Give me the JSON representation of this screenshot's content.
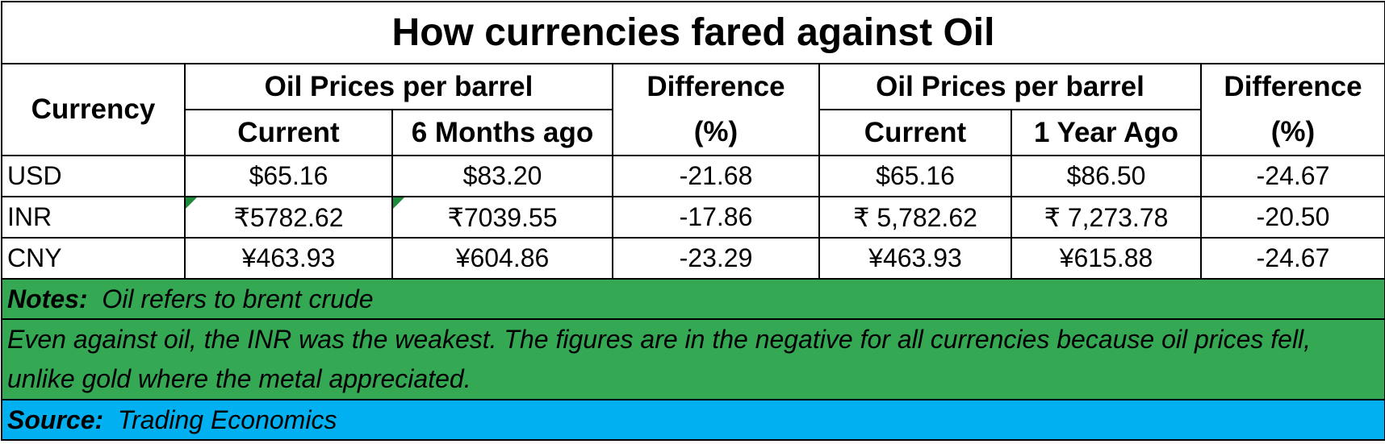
{
  "chart_data": {
    "type": "table",
    "title": "How currencies fared against  Oil",
    "header_groups": [
      {
        "label": "Oil Prices per barrel",
        "columns": [
          "Current",
          "6 Months ago"
        ],
        "difference_label": [
          "Difference",
          "(%)"
        ]
      },
      {
        "label": "Oil Prices per barrel",
        "columns": [
          "Current",
          "1 Year Ago"
        ],
        "difference_label": [
          "Difference",
          "(%)"
        ]
      }
    ],
    "currency_header": "Currency",
    "rows": [
      {
        "currency": "USD",
        "current_6m": "$65.16",
        "six_months_ago": "$83.20",
        "diff_6m": "-21.68",
        "current_1y": "$65.16",
        "one_year_ago": "$86.50",
        "diff_1y": "-24.67"
      },
      {
        "currency": "INR",
        "current_6m": "₹5782.62",
        "six_months_ago": "₹7039.55",
        "diff_6m": "-17.86",
        "current_1y": "₹ 5,782.62",
        "one_year_ago": "₹ 7,273.78",
        "diff_1y": "-20.50"
      },
      {
        "currency": "CNY",
        "current_6m": "¥463.93",
        "six_months_ago": "¥604.86",
        "diff_6m": "-23.29",
        "current_1y": "¥463.93",
        "one_year_ago": "¥615.88",
        "diff_1y": "-24.67"
      }
    ],
    "notes_label": "Notes:",
    "notes_text": "Oil refers to brent crude",
    "commentary": "Even against oil, the INR was the weakest. The figures are in the negative for all currencies because oil prices fell, unlike gold where the metal appreciated.",
    "source_label": "Source:",
    "source_text": "Trading Economics"
  },
  "colors": {
    "notes_background": "#35a853",
    "source_background": "#00b0f0",
    "cell_flag": "#1e8a3a"
  }
}
